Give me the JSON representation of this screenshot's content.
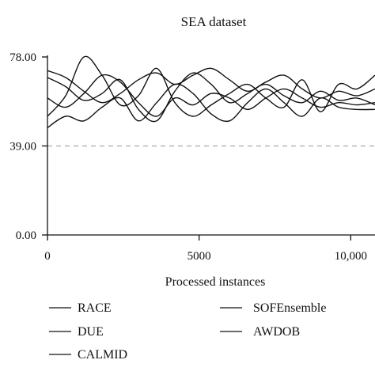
{
  "chart_data": {
    "type": "line",
    "title": "SEA dataset",
    "xlabel": "Processed instances",
    "ylabel": "",
    "xlim": [
      0,
      10800
    ],
    "ylim": [
      0,
      78
    ],
    "x_ticks": [
      0,
      5000,
      10000
    ],
    "x_tick_labels": [
      "0",
      "5000",
      "10,000"
    ],
    "y_ticks": [
      0,
      39,
      78
    ],
    "y_tick_labels": [
      "0.00",
      "39.00",
      "78.00"
    ],
    "reference_line": {
      "y": 39,
      "style": "dashed",
      "color": "#a8a8a8"
    },
    "grid": false,
    "legend_position": "bottom",
    "x": [
      0,
      600,
      1200,
      1800,
      2400,
      3000,
      3600,
      4200,
      4800,
      5400,
      6000,
      6600,
      7200,
      7800,
      8400,
      9000,
      9600,
      10200,
      10800
    ],
    "series": [
      {
        "name": "RACE",
        "values": [
          72,
          69,
          63,
          58,
          62,
          68,
          71,
          66,
          70,
          73,
          68,
          63,
          67,
          70,
          64,
          60,
          63,
          61,
          64
        ]
      },
      {
        "name": "DUE",
        "values": [
          60,
          56,
          62,
          70,
          67,
          58,
          52,
          60,
          57,
          62,
          60,
          55,
          60,
          64,
          60,
          56,
          58,
          57,
          58
        ]
      },
      {
        "name": "CALMID",
        "values": [
          69,
          65,
          59,
          62,
          68,
          55,
          50,
          63,
          71,
          66,
          58,
          62,
          66,
          61,
          58,
          63,
          59,
          60,
          57
        ]
      },
      {
        "name": "SOFEnsemble",
        "values": [
          52,
          61,
          78,
          70,
          57,
          61,
          73,
          58,
          52,
          57,
          62,
          66,
          60,
          56,
          68,
          54,
          66,
          64,
          70
        ]
      },
      {
        "name": "AWDOB",
        "values": [
          47,
          52,
          50,
          56,
          60,
          50,
          58,
          66,
          62,
          53,
          50,
          58,
          64,
          58,
          52,
          60,
          56,
          55,
          55
        ]
      }
    ]
  }
}
